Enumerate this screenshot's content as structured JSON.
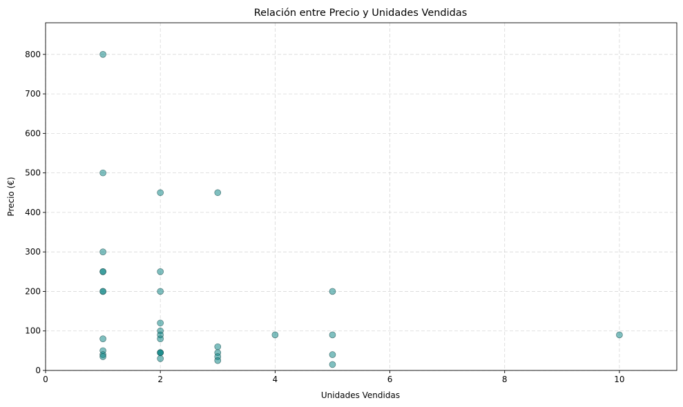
{
  "chart_data": {
    "type": "scatter",
    "title": "Relación entre Precio y Unidades Vendidas",
    "xlabel": "Unidades Vendidas",
    "ylabel": "Precio (€)",
    "xlim": [
      0,
      11
    ],
    "ylim": [
      0,
      880
    ],
    "xticks": [
      0,
      2,
      4,
      6,
      8,
      10
    ],
    "yticks": [
      0,
      100,
      200,
      300,
      400,
      500,
      600,
      700,
      800
    ],
    "grid": true,
    "legend": "none",
    "colors": {
      "point_fill": "#008080",
      "point_fill_opacity": 0.5,
      "point_edge": "#1f4f4f",
      "grid": "#b0b0b0"
    },
    "points": [
      {
        "x": 1,
        "y": 800
      },
      {
        "x": 1,
        "y": 500
      },
      {
        "x": 1,
        "y": 300
      },
      {
        "x": 1,
        "y": 250
      },
      {
        "x": 1,
        "y": 250
      },
      {
        "x": 1,
        "y": 200
      },
      {
        "x": 1,
        "y": 200
      },
      {
        "x": 1,
        "y": 80
      },
      {
        "x": 1,
        "y": 50
      },
      {
        "x": 1,
        "y": 40
      },
      {
        "x": 1,
        "y": 35
      },
      {
        "x": 2,
        "y": 450
      },
      {
        "x": 2,
        "y": 250
      },
      {
        "x": 2,
        "y": 200
      },
      {
        "x": 2,
        "y": 120
      },
      {
        "x": 2,
        "y": 100
      },
      {
        "x": 2,
        "y": 90
      },
      {
        "x": 2,
        "y": 80
      },
      {
        "x": 2,
        "y": 45
      },
      {
        "x": 2,
        "y": 45
      },
      {
        "x": 2,
        "y": 45
      },
      {
        "x": 2,
        "y": 30
      },
      {
        "x": 3,
        "y": 450
      },
      {
        "x": 3,
        "y": 60
      },
      {
        "x": 3,
        "y": 45
      },
      {
        "x": 3,
        "y": 35
      },
      {
        "x": 3,
        "y": 25
      },
      {
        "x": 4,
        "y": 90
      },
      {
        "x": 5,
        "y": 200
      },
      {
        "x": 5,
        "y": 90
      },
      {
        "x": 5,
        "y": 40
      },
      {
        "x": 5,
        "y": 15
      },
      {
        "x": 10,
        "y": 90
      }
    ]
  }
}
